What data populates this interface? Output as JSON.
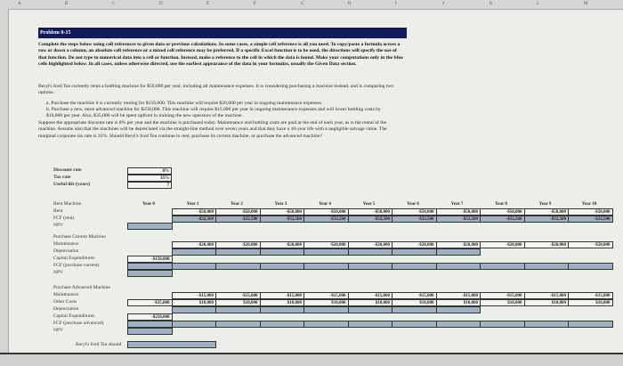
{
  "columns": [
    "A",
    "B",
    "C",
    "D",
    "E",
    "F",
    "G",
    "H",
    "I",
    "J",
    "K",
    "L",
    "M"
  ],
  "title": "Problem 8-15",
  "instructions": "Complete the steps below using cell references to given data or previous calculations. In some cases, a simple cell reference is all you need. To copy/paste a formula across a row or down a column, an absolute cell reference or a mixed cell reference may be preferred. If a specific Excel function is to be used, the directions will specify the use of that function. Do not type in numerical data into a cell or function. Instead, make a reference to the cell in which the data is found. Make your computations only in the blue cells highlighted below. In all cases, unless otherwise directed, use the earliest appearance of the data in your formulas, usually the Given Data section.",
  "intro": "Beryl's Iced Tea currently rents a bottling machine for $50,000 per year, including all maintenance expenses. It is considering purchasing a machine instead, and is comparing two options:",
  "option_a": "a. Purchase the machine it is currently renting for $150,000. This machine will require $20,000 per year in ongoing maintenance expenses.",
  "option_b": "b. Purchase a new, more advanced machine for $250,000. This machine will require $15,000 per year in ongoing maintenance expenses and will lower bottling costs by $10,000 per year. Also, $35,000 will be spent upfront in training the new operators of the machine.",
  "question": "Suppose the appropriate discount rate is 8% per year and the machine is purchased today. Maintenance and bottling costs are paid at the end of each year, as is the rental of the machine. Assume also that the machines will be depreciated via the straight-line method over seven years and that they have a 10-year life with a negligible salvage value. The marginal corporate tax rate is 35%. Should Beryl's Iced Tea continue to rent, purchase its current machine, or purchase the advanced machine?",
  "given": [
    {
      "label": "Discount rate",
      "value": "8%"
    },
    {
      "label": "Tax rate",
      "value": "35%"
    },
    {
      "label": "Useful life (years)",
      "value": "7"
    }
  ],
  "years": [
    "Year 0",
    "Year 1",
    "Year 2",
    "Year 3",
    "Year 4",
    "Year 5",
    "Year 6",
    "Year 7",
    "Year 8",
    "Year 9",
    "Year 10"
  ],
  "rent": {
    "header": "Rent Machine",
    "rent_label": "Rent",
    "rent": "-$50,000",
    "fcf_label": "FCF (rent)",
    "fcf": "-$32,500",
    "npv_label": "NPV"
  },
  "current": {
    "header": "Purchase Current Machine",
    "maint_label": "Maintenance",
    "maint": "-$20,000",
    "dep_label": "Depreciation",
    "capex_label": "Capital Expenditures",
    "capex": "-$150,000",
    "fcf_label": "FCF (purchase current)",
    "npv_label": "NPV"
  },
  "advanced": {
    "header": "Purchase Advanced Machine",
    "maint_label": "Maintenance",
    "maint": "-$15,000",
    "other_label": "Other Costs",
    "other0": "-$35,000",
    "other": "$10,000",
    "dep_label": "Depreciation",
    "capex_label": "Capital Expenditures",
    "capex": "-$250,000",
    "fcf_label": "FCF (purchase advanced)",
    "npv_label": "NPV"
  },
  "conclusion_label": "Beryl's Iced Tea should",
  "colors": {
    "title_bar": "#121a5c",
    "input_cell": "#9fb1c2"
  }
}
